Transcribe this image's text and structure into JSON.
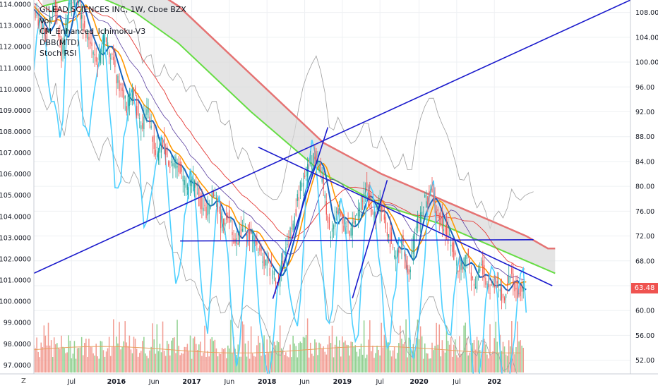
{
  "legend": {
    "title": "GILEAD SCIENCES INC, 1W, Cboe BZX",
    "items": [
      "Vol",
      "CM_Enhanced_Ichimoku-V3",
      "DBB(MTD)",
      "Stoch RSI"
    ]
  },
  "last_price": "63.48",
  "corner_left": "Z",
  "colors": {
    "up": "#26a69a",
    "down": "#ef5350",
    "ma_blue": "#1565c0",
    "ma_orange": "#ff9800",
    "stoch": "#4dd0ff",
    "cloud_red": "#e57373",
    "cloud_green": "#66dd44",
    "trend": "#1a1acc",
    "red_ma": "#e53935",
    "bands": "#9e9e9e",
    "grid": "#eef0f3"
  },
  "chart_data": {
    "type": "candlestick",
    "x_axis": {
      "ticks": [
        "Jul",
        "2016",
        "Jun",
        "2017",
        "Jun",
        "2018",
        "Jun",
        "2019",
        "Jul",
        "2020",
        "Jul",
        "202"
      ],
      "range_weeks": [
        0,
        412
      ]
    },
    "left_axis": {
      "ticks": [
        "114.0000",
        "113.0000",
        "112.0000",
        "111.0000",
        "110.0000",
        "109.0000",
        "108.0000",
        "107.0000",
        "106.0000",
        "105.0000",
        "104.0000",
        "103.0000",
        "102.0000",
        "101.0000",
        "100.0000",
        "99.0000",
        "98.0000",
        "97.0000"
      ],
      "range": [
        96.58,
        114.2
      ]
    },
    "right_axis": {
      "ticks": [
        "108.00",
        "104.00",
        "100.00",
        "96.00",
        "92.00",
        "88.00",
        "84.00",
        "80.00",
        "76.00",
        "72.00",
        "68.00",
        "64.00",
        "60.00",
        "56.00",
        "52.00"
      ],
      "range": [
        49.8,
        110.0
      ]
    },
    "price_path": [
      [
        0,
        108.5
      ],
      [
        5,
        106
      ],
      [
        10,
        104
      ],
      [
        15,
        110
      ],
      [
        20,
        101
      ],
      [
        25,
        109
      ],
      [
        30,
        111
      ],
      [
        35,
        106
      ],
      [
        40,
        103
      ],
      [
        45,
        100
      ],
      [
        50,
        104
      ],
      [
        55,
        100
      ],
      [
        60,
        96
      ],
      [
        65,
        93
      ],
      [
        70,
        95
      ],
      [
        75,
        89
      ],
      [
        80,
        92
      ],
      [
        85,
        85
      ],
      [
        90,
        87
      ],
      [
        95,
        83
      ],
      [
        100,
        84
      ],
      [
        105,
        80
      ],
      [
        110,
        81
      ],
      [
        115,
        78
      ],
      [
        120,
        76
      ],
      [
        125,
        79
      ],
      [
        130,
        74
      ],
      [
        135,
        76
      ],
      [
        140,
        70
      ],
      [
        145,
        74
      ],
      [
        150,
        72
      ],
      [
        155,
        70
      ],
      [
        160,
        68
      ],
      [
        165,
        66
      ],
      [
        170,
        65
      ],
      [
        175,
        70
      ],
      [
        180,
        74
      ],
      [
        185,
        80
      ],
      [
        190,
        83
      ],
      [
        195,
        85
      ],
      [
        200,
        81
      ],
      [
        205,
        72
      ],
      [
        210,
        76
      ],
      [
        215,
        74
      ],
      [
        220,
        73
      ],
      [
        225,
        76
      ],
      [
        230,
        80
      ],
      [
        235,
        75
      ],
      [
        240,
        77
      ],
      [
        245,
        73
      ],
      [
        250,
        69
      ],
      [
        255,
        71
      ],
      [
        260,
        66
      ],
      [
        265,
        74
      ],
      [
        270,
        77
      ],
      [
        275,
        79
      ],
      [
        280,
        75
      ],
      [
        285,
        73
      ],
      [
        290,
        70
      ],
      [
        295,
        66
      ],
      [
        300,
        69
      ],
      [
        305,
        64
      ],
      [
        310,
        67
      ],
      [
        315,
        63
      ],
      [
        320,
        65
      ],
      [
        325,
        62
      ],
      [
        330,
        66
      ],
      [
        335,
        63
      ],
      [
        338,
        63.48
      ]
    ],
    "cloud": {
      "upper": [
        [
          6,
          114
        ],
        [
          50,
          114
        ],
        [
          80,
          112
        ],
        [
          100,
          109
        ],
        [
          150,
          98
        ],
        [
          200,
          87
        ],
        [
          240,
          82
        ],
        [
          280,
          78
        ],
        [
          300,
          76
        ],
        [
          320,
          74
        ],
        [
          340,
          72
        ],
        [
          355,
          70
        ],
        [
          360,
          70
        ]
      ],
      "lower": [
        [
          6,
          109
        ],
        [
          40,
          111
        ],
        [
          70,
          108
        ],
        [
          100,
          103
        ],
        [
          150,
          92
        ],
        [
          200,
          82
        ],
        [
          240,
          77
        ],
        [
          280,
          74
        ],
        [
          300,
          72
        ],
        [
          320,
          70
        ],
        [
          340,
          68
        ],
        [
          360,
          66
        ]
      ]
    },
    "trend_lines": [
      [
        [
          0,
          66.0
        ],
        [
          412,
          110.0
        ]
      ],
      [
        [
          101,
          71.2
        ],
        [
          345,
          71.4
        ]
      ],
      [
        [
          155,
          86.3
        ],
        [
          358,
          64.0
        ]
      ],
      [
        [
          165,
          61.9
        ],
        [
          203,
          89.5
        ]
      ],
      [
        [
          220,
          62.0
        ],
        [
          244,
          81.0
        ]
      ]
    ],
    "volume_range": [
      0,
      1
    ]
  }
}
